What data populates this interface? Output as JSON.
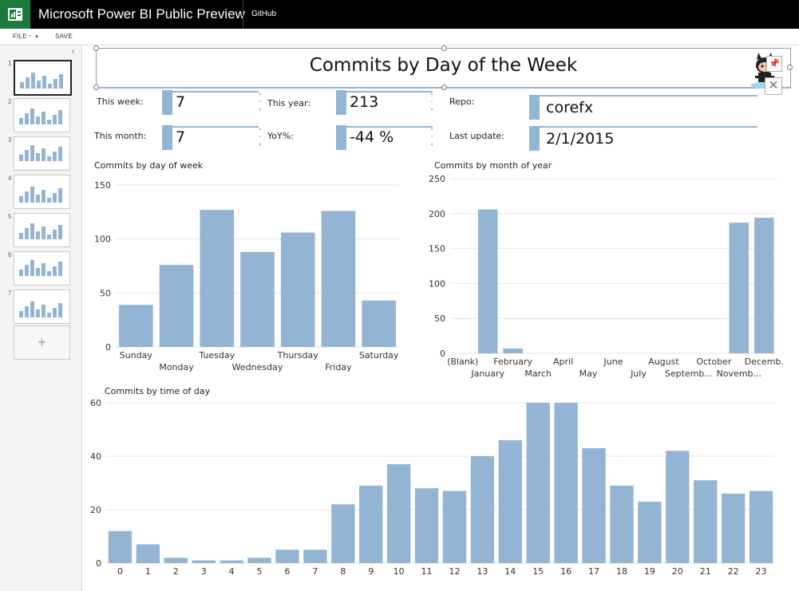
{
  "app": {
    "title": "Microsoft Power BI Public Preview",
    "repo_link": "GitHub",
    "logo_icon": "power-bi-logo-icon"
  },
  "menu": {
    "file_label": "FILE",
    "save_label": "SAVE"
  },
  "sidebar": {
    "pages": [
      {
        "number": "1",
        "selected": true
      },
      {
        "number": "2",
        "selected": false
      },
      {
        "number": "3",
        "selected": false
      },
      {
        "number": "4",
        "selected": false
      },
      {
        "number": "5",
        "selected": false
      },
      {
        "number": "6",
        "selected": false
      },
      {
        "number": "7",
        "selected": false
      }
    ],
    "add_label": "+"
  },
  "report": {
    "title": "Commits by Day of the Week",
    "kpis": {
      "this_week_label": "This week:",
      "this_week_value": "7",
      "this_month_label": "This month:",
      "this_month_value": "7",
      "this_year_label": "This year:",
      "this_year_value": "213",
      "yoy_label": "YoY%:",
      "yoy_value": "-44 %",
      "repo_label": "Repo:",
      "repo_value": "corefx",
      "last_update_label": "Last update:",
      "last_update_value": "2/1/2015"
    }
  },
  "colors": {
    "bar": "#94b4d3",
    "grid": "#e6e6e6",
    "axis_text": "#333333"
  },
  "chart_data": [
    {
      "type": "bar",
      "title": "Commits by day of week",
      "categories": [
        "Sunday",
        "Monday",
        "Tuesday",
        "Wednesday",
        "Thursday",
        "Friday",
        "Saturday"
      ],
      "values": [
        39,
        76,
        127,
        88,
        106,
        126,
        43
      ],
      "ylim": [
        0,
        150
      ],
      "yticks": [
        0,
        50,
        100,
        150
      ],
      "grid": true
    },
    {
      "type": "bar",
      "title": "Commits by month of year",
      "categories": [
        "(Blank)",
        "January",
        "February",
        "March",
        "April",
        "May",
        "June",
        "July",
        "August",
        "Septemb...",
        "October",
        "Novemb...",
        "Decemb."
      ],
      "values": [
        0,
        206,
        7,
        0,
        0,
        0,
        0,
        0,
        0,
        0,
        0,
        187,
        194
      ],
      "ylim": [
        0,
        250
      ],
      "yticks": [
        0,
        50,
        100,
        150,
        200,
        250
      ],
      "grid": true
    },
    {
      "type": "bar",
      "title": "Commits by time of day",
      "categories": [
        "0",
        "1",
        "2",
        "3",
        "4",
        "5",
        "6",
        "7",
        "8",
        "9",
        "10",
        "11",
        "12",
        "13",
        "14",
        "15",
        "16",
        "17",
        "18",
        "19",
        "20",
        "21",
        "22",
        "23"
      ],
      "values": [
        12,
        7,
        2,
        1,
        1,
        2,
        5,
        5,
        22,
        29,
        37,
        28,
        27,
        40,
        46,
        60,
        60,
        43,
        29,
        23,
        42,
        31,
        26,
        27
      ],
      "ylim": [
        0,
        60
      ],
      "yticks": [
        0,
        20,
        40,
        60
      ],
      "grid": true
    }
  ]
}
